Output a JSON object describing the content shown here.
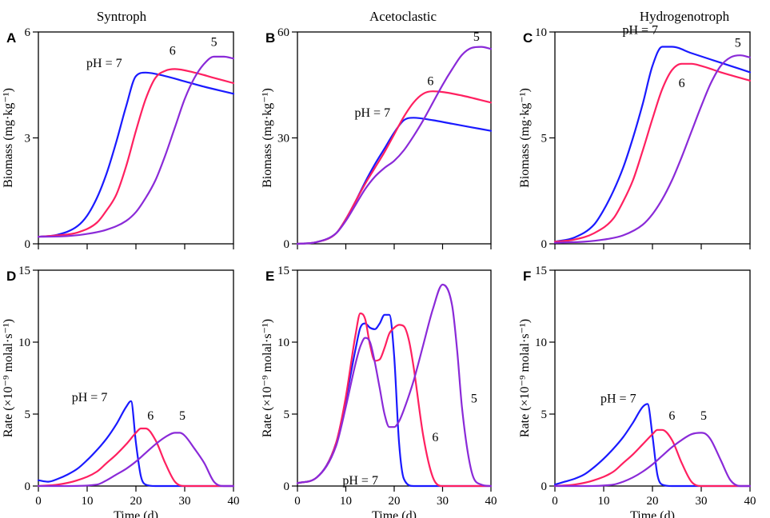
{
  "column_titles": [
    "Syntroph",
    "Acetoclastic",
    "Hydrogenotroph"
  ],
  "colors": {
    "ph7": "#1a1aff",
    "ph6": "#ff2060",
    "ph5": "#8a2ad8"
  },
  "chart_data": [
    {
      "panel": "A",
      "type": "line",
      "column": 0,
      "row": 0,
      "xlabel": "",
      "ylabel": "Biomass (mg·kg⁻¹)",
      "xlim": [
        0,
        40
      ],
      "ylim": [
        0,
        6
      ],
      "xticks": [
        0,
        10,
        20,
        30,
        40
      ],
      "yticks": [
        0,
        3,
        6
      ],
      "xtick_labels": false,
      "series": [
        {
          "name": "pH = 7",
          "color": "#1a1aff",
          "x": [
            0,
            4,
            8,
            10,
            12,
            14,
            16,
            18,
            20,
            22,
            26,
            30,
            34,
            40
          ],
          "y": [
            0.2,
            0.26,
            0.5,
            0.8,
            1.3,
            2.0,
            2.9,
            3.9,
            4.75,
            4.85,
            4.75,
            4.6,
            4.45,
            4.25
          ]
        },
        {
          "name": "6",
          "color": "#ff2060",
          "x": [
            0,
            4,
            8,
            12,
            14,
            16,
            18,
            20,
            22,
            24,
            26,
            28,
            32,
            36,
            40
          ],
          "y": [
            0.2,
            0.24,
            0.32,
            0.6,
            0.95,
            1.4,
            2.2,
            3.2,
            4.1,
            4.7,
            4.9,
            4.95,
            4.85,
            4.7,
            4.55
          ]
        },
        {
          "name": "5",
          "color": "#8a2ad8",
          "x": [
            0,
            6,
            10,
            14,
            18,
            20,
            22,
            24,
            26,
            28,
            30,
            32,
            34,
            36,
            38,
            40
          ],
          "y": [
            0.2,
            0.22,
            0.28,
            0.4,
            0.65,
            0.9,
            1.3,
            1.8,
            2.5,
            3.3,
            4.1,
            4.7,
            5.1,
            5.3,
            5.3,
            5.25
          ]
        }
      ],
      "annotations": [
        {
          "text": "pH = 7",
          "series": "pH = 7",
          "x": 13.5,
          "y": 5.0
        },
        {
          "text": "6",
          "series": "6",
          "x": 27.5,
          "y": 5.35
        },
        {
          "text": "5",
          "series": "5",
          "x": 36.0,
          "y": 5.6
        }
      ]
    },
    {
      "panel": "B",
      "type": "line",
      "column": 1,
      "row": 0,
      "xlabel": "",
      "ylabel": "Biomass (mg·kg⁻¹)",
      "xlim": [
        0,
        40
      ],
      "ylim": [
        0,
        60
      ],
      "xticks": [
        0,
        10,
        20,
        30,
        40
      ],
      "yticks": [
        0,
        30,
        60
      ],
      "xtick_labels": false,
      "series": [
        {
          "name": "pH = 7",
          "color": "#1a1aff",
          "x": [
            0,
            4,
            8,
            10,
            12,
            14,
            16,
            18,
            20,
            22,
            24,
            28,
            32,
            36,
            40
          ],
          "y": [
            0,
            0.5,
            3,
            7,
            12,
            17.5,
            22.5,
            27,
            31.5,
            35,
            35.7,
            35,
            34,
            33,
            32
          ]
        },
        {
          "name": "6",
          "color": "#ff2060",
          "x": [
            0,
            4,
            8,
            10,
            12,
            14,
            16,
            18,
            20,
            22,
            24,
            26,
            28,
            30,
            34,
            40
          ],
          "y": [
            0,
            0.5,
            3,
            7,
            12,
            17,
            21.5,
            26,
            31,
            36,
            40,
            42.5,
            43.2,
            43,
            42,
            40
          ]
        },
        {
          "name": "5",
          "color": "#8a2ad8",
          "x": [
            0,
            4,
            8,
            10,
            12,
            14,
            16,
            18,
            20,
            22,
            24,
            26,
            28,
            30,
            32,
            34,
            36,
            38,
            40
          ],
          "y": [
            0,
            0.5,
            3,
            6.5,
            11,
            15.5,
            19,
            21.5,
            23.5,
            26.5,
            30.5,
            35,
            40,
            45,
            49.5,
            53.5,
            55.5,
            55.8,
            55.2
          ]
        }
      ],
      "annotations": [
        {
          "text": "pH = 7",
          "series": "pH = 7",
          "x": 15.5,
          "y": 36.0
        },
        {
          "text": "6",
          "series": "6",
          "x": 27.5,
          "y": 45.0
        },
        {
          "text": "5",
          "series": "5",
          "x": 37.0,
          "y": 57.5
        }
      ]
    },
    {
      "panel": "C",
      "type": "line",
      "column": 2,
      "row": 0,
      "xlabel": "",
      "ylabel": "Biomass (mg·kg⁻¹)",
      "xlim": [
        0,
        40
      ],
      "ylim": [
        0,
        10
      ],
      "xticks": [
        0,
        10,
        20,
        30,
        40
      ],
      "yticks": [
        0,
        5,
        10
      ],
      "xtick_labels": false,
      "series": [
        {
          "name": "pH = 7",
          "color": "#1a1aff",
          "x": [
            0,
            4,
            8,
            10,
            12,
            14,
            16,
            18,
            20,
            22,
            24,
            28,
            32,
            36,
            40
          ],
          "y": [
            0.1,
            0.3,
            0.9,
            1.6,
            2.5,
            3.6,
            5.0,
            6.6,
            8.4,
            9.3,
            9.3,
            9.0,
            8.7,
            8.4,
            8.1
          ]
        },
        {
          "name": "6",
          "color": "#ff2060",
          "x": [
            0,
            4,
            8,
            12,
            14,
            16,
            18,
            20,
            22,
            24,
            26,
            28,
            30,
            34,
            40
          ],
          "y": [
            0.1,
            0.2,
            0.5,
            1.2,
            2.0,
            3.0,
            4.4,
            5.9,
            7.3,
            8.2,
            8.5,
            8.5,
            8.4,
            8.1,
            7.7
          ]
        },
        {
          "name": "5",
          "color": "#8a2ad8",
          "x": [
            0,
            6,
            10,
            14,
            18,
            20,
            22,
            24,
            26,
            28,
            30,
            32,
            34,
            36,
            38,
            40
          ],
          "y": [
            0.05,
            0.1,
            0.2,
            0.4,
            0.9,
            1.4,
            2.1,
            3.0,
            4.1,
            5.3,
            6.5,
            7.6,
            8.4,
            8.8,
            8.9,
            8.8
          ]
        }
      ],
      "annotations": [
        {
          "text": "pH = 7",
          "series": "pH = 7",
          "x": 17.5,
          "y": 9.9
        },
        {
          "text": "6",
          "series": "6",
          "x": 26.0,
          "y": 7.4
        },
        {
          "text": "5",
          "series": "5",
          "x": 37.5,
          "y": 9.3
        }
      ]
    },
    {
      "panel": "D",
      "type": "line",
      "column": 0,
      "row": 1,
      "xlabel": "Time (d)",
      "ylabel": "Rate (×10⁻⁹ molal·s⁻¹)",
      "xlim": [
        0,
        40
      ],
      "ylim": [
        0,
        15
      ],
      "xticks": [
        0,
        10,
        20,
        30,
        40
      ],
      "yticks": [
        0,
        5,
        10,
        15
      ],
      "xtick_labels": true,
      "series": [
        {
          "name": "pH = 7",
          "color": "#1a1aff",
          "x": [
            0,
            2,
            4,
            6,
            8,
            10,
            12,
            14,
            16,
            18,
            19,
            20,
            21,
            22,
            24,
            28,
            32,
            40
          ],
          "y": [
            0.4,
            0.3,
            0.5,
            0.8,
            1.2,
            1.8,
            2.5,
            3.3,
            4.3,
            5.5,
            5.9,
            3.0,
            0.7,
            0.1,
            0,
            0,
            0,
            0
          ]
        },
        {
          "name": "6",
          "color": "#ff2060",
          "x": [
            0,
            4,
            8,
            12,
            14,
            16,
            18,
            20,
            21,
            22,
            24,
            26,
            28,
            30,
            34,
            40
          ],
          "y": [
            0,
            0.1,
            0.4,
            1.0,
            1.6,
            2.2,
            2.9,
            3.7,
            4.0,
            4.0,
            3.2,
            1.6,
            0.3,
            0,
            0,
            0
          ]
        },
        {
          "name": "5",
          "color": "#8a2ad8",
          "x": [
            0,
            6,
            12,
            14,
            16,
            18,
            20,
            22,
            24,
            26,
            28,
            29,
            30,
            32,
            34,
            36,
            38,
            40
          ],
          "y": [
            0,
            0,
            0.1,
            0.4,
            0.8,
            1.2,
            1.7,
            2.3,
            2.9,
            3.4,
            3.7,
            3.7,
            3.5,
            2.6,
            1.6,
            0.3,
            0,
            0
          ]
        }
      ],
      "annotations": [
        {
          "text": "pH = 7",
          "series": "pH = 7",
          "x": 10.5,
          "y": 5.9
        },
        {
          "text": "6",
          "series": "6",
          "x": 23.0,
          "y": 4.6
        },
        {
          "text": "5",
          "series": "5",
          "x": 29.5,
          "y": 4.6
        }
      ]
    },
    {
      "panel": "E",
      "type": "line",
      "column": 1,
      "row": 1,
      "xlabel": "Time (d)",
      "ylabel": "Rate (×10⁻⁹ molal·s⁻¹)",
      "xlim": [
        0,
        40
      ],
      "ylim": [
        0,
        15
      ],
      "xticks": [
        0,
        10,
        20,
        30,
        40
      ],
      "yticks": [
        0,
        5,
        10,
        15
      ],
      "xtick_labels": true,
      "series": [
        {
          "name": "pH = 7",
          "color": "#1a1aff",
          "x": [
            0,
            4,
            8,
            10,
            12,
            13,
            14,
            15,
            16,
            17,
            18,
            19,
            20,
            21,
            22,
            24,
            40
          ],
          "y": [
            0.2,
            0.6,
            3.0,
            6.0,
            9.5,
            11.0,
            11.3,
            11.0,
            10.9,
            11.3,
            11.9,
            11.9,
            9.0,
            3.0,
            0.5,
            0,
            0
          ]
        },
        {
          "name": "6",
          "color": "#ff2060",
          "x": [
            0,
            4,
            8,
            10,
            12,
            13,
            14,
            15,
            16,
            17,
            18,
            19,
            20,
            21,
            22,
            23,
            24,
            26,
            28,
            30,
            40
          ],
          "y": [
            0.2,
            0.6,
            3.0,
            6.2,
            10.5,
            12.0,
            11.6,
            9.8,
            8.7,
            8.8,
            9.6,
            10.6,
            11.0,
            11.2,
            11.1,
            10.2,
            8.3,
            3.5,
            0.6,
            0,
            0
          ]
        },
        {
          "name": "5",
          "color": "#8a2ad8",
          "x": [
            0,
            4,
            8,
            10,
            12,
            13,
            14,
            15,
            16,
            17,
            18,
            19,
            20,
            21,
            22,
            24,
            26,
            28,
            30,
            32,
            33,
            34,
            36,
            38,
            40
          ],
          "y": [
            0.2,
            0.6,
            2.8,
            5.5,
            8.5,
            9.7,
            10.3,
            10.0,
            8.6,
            6.8,
            5.0,
            4.1,
            4.1,
            4.5,
            5.3,
            7.3,
            9.8,
            12.3,
            14.0,
            12.5,
            9.5,
            5.5,
            1.0,
            0.1,
            0
          ]
        }
      ],
      "annotations": [
        {
          "text": "pH = 7",
          "series": "pH = 7",
          "x": 13.0,
          "y": 0.1
        },
        {
          "text": "6",
          "series": "6",
          "x": 28.5,
          "y": 3.1
        },
        {
          "text": "5",
          "series": "5",
          "x": 36.5,
          "y": 5.8
        }
      ]
    },
    {
      "panel": "F",
      "type": "line",
      "column": 2,
      "row": 1,
      "xlabel": "Time (d)",
      "ylabel": "Rate (×10⁻⁹ molal·s⁻¹)",
      "xlim": [
        0,
        40
      ],
      "ylim": [
        0,
        15
      ],
      "xticks": [
        0,
        10,
        20,
        30,
        40
      ],
      "yticks": [
        0,
        5,
        10,
        15
      ],
      "xtick_labels": true,
      "series": [
        {
          "name": "pH = 7",
          "color": "#1a1aff",
          "x": [
            0,
            2,
            4,
            6,
            8,
            10,
            12,
            14,
            16,
            18,
            19,
            20,
            21,
            22,
            24,
            40
          ],
          "y": [
            0.1,
            0.3,
            0.5,
            0.8,
            1.3,
            1.9,
            2.6,
            3.4,
            4.4,
            5.5,
            5.7,
            3.5,
            0.8,
            0.1,
            0,
            0
          ]
        },
        {
          "name": "6",
          "color": "#ff2060",
          "x": [
            0,
            4,
            8,
            12,
            14,
            16,
            18,
            20,
            21,
            22,
            24,
            26,
            28,
            30,
            40
          ],
          "y": [
            0,
            0.1,
            0.4,
            1.0,
            1.6,
            2.2,
            2.9,
            3.6,
            3.9,
            3.9,
            3.2,
            1.6,
            0.3,
            0,
            0
          ]
        },
        {
          "name": "5",
          "color": "#8a2ad8",
          "x": [
            0,
            6,
            12,
            14,
            16,
            18,
            20,
            22,
            24,
            26,
            28,
            30,
            31,
            32,
            34,
            36,
            38,
            40
          ],
          "y": [
            0,
            0,
            0.1,
            0.3,
            0.6,
            1.0,
            1.5,
            2.1,
            2.7,
            3.2,
            3.6,
            3.7,
            3.6,
            3.2,
            1.8,
            0.4,
            0,
            0
          ]
        }
      ],
      "annotations": [
        {
          "text": "pH = 7",
          "series": "pH = 7",
          "x": 13.0,
          "y": 5.8
        },
        {
          "text": "6",
          "series": "6",
          "x": 24.0,
          "y": 4.6
        },
        {
          "text": "5",
          "series": "5",
          "x": 30.5,
          "y": 4.6
        }
      ]
    }
  ]
}
